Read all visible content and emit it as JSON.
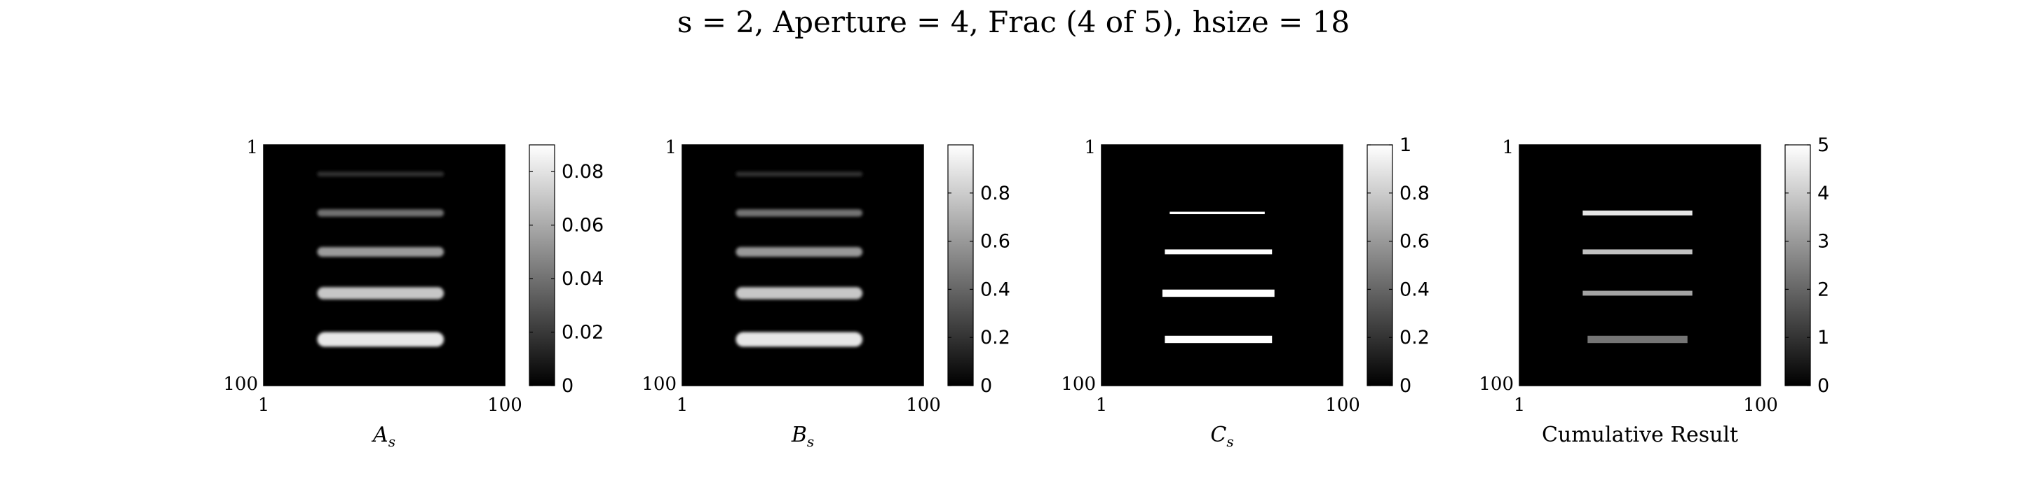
{
  "figure": {
    "title": "s = 2, Aperture = 4, Frac (4 of 5), hsize = 18"
  },
  "chart_data": [
    {
      "type": "heatmap",
      "xlabel": "A",
      "xlabel_sub": "s",
      "x_ticks": [
        "1",
        "100"
      ],
      "y_ticks": [
        "1",
        "100"
      ],
      "xlim": [
        1,
        100
      ],
      "ylim": [
        1,
        100
      ],
      "colormap": "gray",
      "colorbar": {
        "ticks": [
          0,
          0.02,
          0.04,
          0.06,
          0.08
        ],
        "tick_labels": [
          "0",
          "0.02",
          "0.04",
          "0.06",
          "0.08"
        ],
        "range": [
          0,
          0.09
        ]
      },
      "bars": [
        {
          "row": 13,
          "col_start": 23,
          "col_end": 75,
          "thickness": 2,
          "value": 0.018
        },
        {
          "row": 29,
          "col_start": 23,
          "col_end": 75,
          "thickness": 3,
          "value": 0.04
        },
        {
          "row": 45,
          "col_start": 23,
          "col_end": 75,
          "thickness": 4,
          "value": 0.055
        },
        {
          "row": 62,
          "col_start": 23,
          "col_end": 75,
          "thickness": 5,
          "value": 0.07
        },
        {
          "row": 81,
          "col_start": 23,
          "col_end": 75,
          "thickness": 6,
          "value": 0.082
        }
      ]
    },
    {
      "type": "heatmap",
      "xlabel": "B",
      "xlabel_sub": "s",
      "x_ticks": [
        "1",
        "100"
      ],
      "y_ticks": [
        "1",
        "100"
      ],
      "xlim": [
        1,
        100
      ],
      "ylim": [
        1,
        100
      ],
      "colormap": "gray",
      "colorbar": {
        "ticks": [
          0,
          0.2,
          0.4,
          0.6,
          0.8
        ],
        "tick_labels": [
          "0",
          "0.2",
          "0.4",
          "0.6",
          "0.8"
        ],
        "range": [
          0,
          1
        ]
      },
      "bars": [
        {
          "row": 13,
          "col_start": 23,
          "col_end": 75,
          "thickness": 2,
          "value": 0.2
        },
        {
          "row": 29,
          "col_start": 23,
          "col_end": 75,
          "thickness": 3,
          "value": 0.45
        },
        {
          "row": 45,
          "col_start": 23,
          "col_end": 75,
          "thickness": 4,
          "value": 0.6
        },
        {
          "row": 62,
          "col_start": 23,
          "col_end": 75,
          "thickness": 5,
          "value": 0.78
        },
        {
          "row": 81,
          "col_start": 23,
          "col_end": 75,
          "thickness": 6,
          "value": 0.9
        }
      ]
    },
    {
      "type": "heatmap",
      "xlabel": "C",
      "xlabel_sub": "s",
      "x_ticks": [
        "1",
        "100"
      ],
      "y_ticks": [
        "1",
        "100"
      ],
      "xlim": [
        1,
        100
      ],
      "ylim": [
        1,
        100
      ],
      "colormap": "gray",
      "colorbar": {
        "ticks": [
          0,
          0.2,
          0.4,
          0.6,
          0.8,
          1
        ],
        "tick_labels": [
          "0",
          "0.2",
          "0.4",
          "0.6",
          "0.8",
          "1"
        ],
        "range": [
          0,
          1
        ]
      },
      "bars": [
        {
          "row": 29,
          "col_start": 29,
          "col_end": 68,
          "thickness": 1,
          "value": 1
        },
        {
          "row": 45,
          "col_start": 27,
          "col_end": 71,
          "thickness": 2,
          "value": 1
        },
        {
          "row": 62,
          "col_start": 26,
          "col_end": 72,
          "thickness": 3,
          "value": 1
        },
        {
          "row": 81,
          "col_start": 27,
          "col_end": 71,
          "thickness": 3,
          "value": 1
        }
      ]
    },
    {
      "type": "heatmap",
      "xlabel": "Cumulative Result",
      "xlabel_sub": "",
      "x_ticks": [
        "1",
        "100"
      ],
      "y_ticks": [
        "1",
        "100"
      ],
      "xlim": [
        1,
        100
      ],
      "ylim": [
        1,
        100
      ],
      "colormap": "gray",
      "colorbar": {
        "ticks": [
          0,
          1,
          2,
          3,
          4,
          5
        ],
        "tick_labels": [
          "0",
          "1",
          "2",
          "3",
          "4",
          "5"
        ],
        "range": [
          0,
          5
        ]
      },
      "bars": [
        {
          "row": 29,
          "col_start": 27,
          "col_end": 72,
          "thickness": 2,
          "value": 4.5
        },
        {
          "row": 45,
          "col_start": 27,
          "col_end": 72,
          "thickness": 2,
          "value": 3.8
        },
        {
          "row": 62,
          "col_start": 27,
          "col_end": 72,
          "thickness": 2,
          "value": 3.2
        },
        {
          "row": 81,
          "col_start": 29,
          "col_end": 70,
          "thickness": 3,
          "value": 2.3
        }
      ]
    }
  ]
}
